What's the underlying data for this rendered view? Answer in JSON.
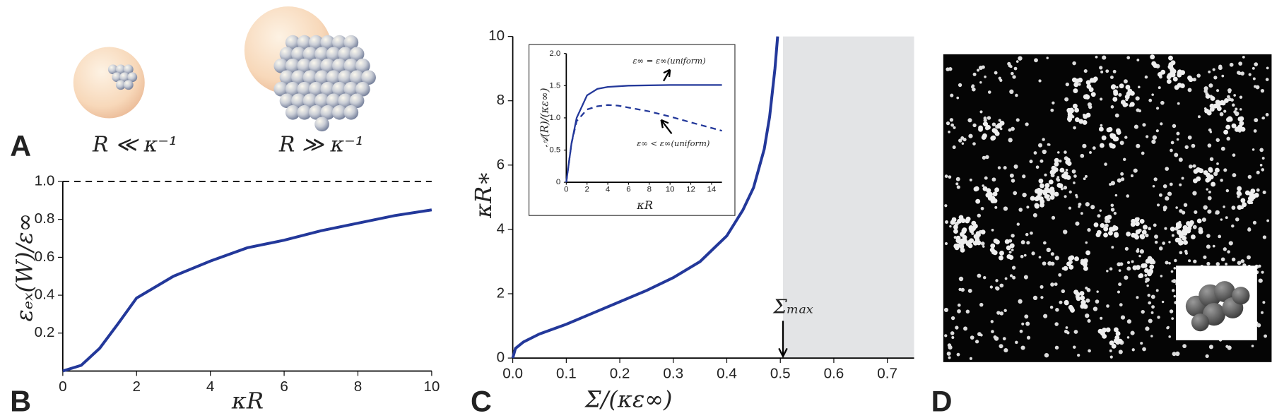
{
  "panel_labels": [
    "A",
    "B",
    "C",
    "D"
  ],
  "illustration": {
    "left_label": "R ≪ κ⁻¹",
    "right_label": "R ≫ κ⁻¹"
  },
  "chart_data": [
    {
      "type": "line",
      "xlabel": "κR",
      "ylabel": "εₑₓ(W)/ε∞",
      "xlim": [
        0,
        10
      ],
      "ylim": [
        0,
        1
      ],
      "xticks": [
        0,
        2,
        4,
        6,
        8,
        10
      ],
      "yticks": [
        0.2,
        0.4,
        0.6,
        0.8,
        {
          "value": 1,
          "label": "1.0"
        }
      ],
      "hlines": [
        1
      ],
      "series": [
        {
          "color": "#23389a",
          "dash": false,
          "x": [
            0,
            0.5,
            1,
            1.5,
            2,
            3,
            4,
            5,
            6,
            7,
            8,
            9,
            10
          ],
          "values": [
            0,
            0.03,
            0.12,
            0.25,
            0.385,
            0.5,
            0.58,
            0.65,
            0.69,
            0.74,
            0.78,
            0.82,
            0.85
          ]
        }
      ]
    },
    {
      "type": "line",
      "xlabel": "Σ/(κε∞)",
      "ylabel": "κR∗",
      "xlim": [
        0,
        0.75
      ],
      "ylim": [
        0,
        10
      ],
      "xticks": [
        {
          "value": 0,
          "label": "0.0"
        },
        0.1,
        0.2,
        0.3,
        0.4,
        0.5,
        0.6,
        0.7
      ],
      "yticks": [
        0,
        2,
        4,
        6,
        8,
        10
      ],
      "shaded_xrange": [
        0.505,
        0.75
      ],
      "annotations": [
        {
          "text": "Σₘₐₓ",
          "x": 0.505
        }
      ],
      "series": [
        {
          "color": "#23389a",
          "dash": false,
          "x": [
            0,
            0.005,
            0.02,
            0.05,
            0.1,
            0.15,
            0.2,
            0.25,
            0.3,
            0.35,
            0.4,
            0.43,
            0.45,
            0.47,
            0.48,
            0.49,
            0.495
          ],
          "values": [
            0,
            0.3,
            0.5,
            0.75,
            1.05,
            1.4,
            1.75,
            2.1,
            2.5,
            3.0,
            3.8,
            4.6,
            5.3,
            6.5,
            7.5,
            9,
            10
          ]
        }
      ]
    },
    {
      "type": "line",
      "xlabel": "κR",
      "ylabel": "𝒜(R)/(κε∞)",
      "xlim": [
        0,
        15
      ],
      "ylim": [
        0,
        2
      ],
      "xticks": [
        0,
        2,
        4,
        6,
        8,
        10,
        12,
        14
      ],
      "yticks": [
        0,
        0.5,
        {
          "value": 1,
          "label": "1.0"
        },
        1.5,
        {
          "value": 2,
          "label": "2.0"
        }
      ],
      "annotations": [
        {
          "text": "ε∞ = ε∞(uniform)"
        },
        {
          "text": "ε∞ < ε∞(uniform)"
        }
      ],
      "series": [
        {
          "color": "#23389a",
          "dash": false,
          "x": [
            0,
            0.5,
            1,
            2,
            3,
            4,
            6,
            10,
            15
          ],
          "values": [
            0,
            0.6,
            1.0,
            1.35,
            1.45,
            1.48,
            1.5,
            1.51,
            1.51
          ]
        },
        {
          "color": "#23389a",
          "dash": true,
          "x": [
            0,
            0.5,
            1,
            2,
            3,
            4,
            5,
            6,
            8,
            10,
            12,
            15
          ],
          "values": [
            0,
            0.6,
            0.95,
            1.13,
            1.18,
            1.2,
            1.19,
            1.16,
            1.1,
            1.02,
            0.93,
            0.8
          ]
        }
      ]
    }
  ]
}
